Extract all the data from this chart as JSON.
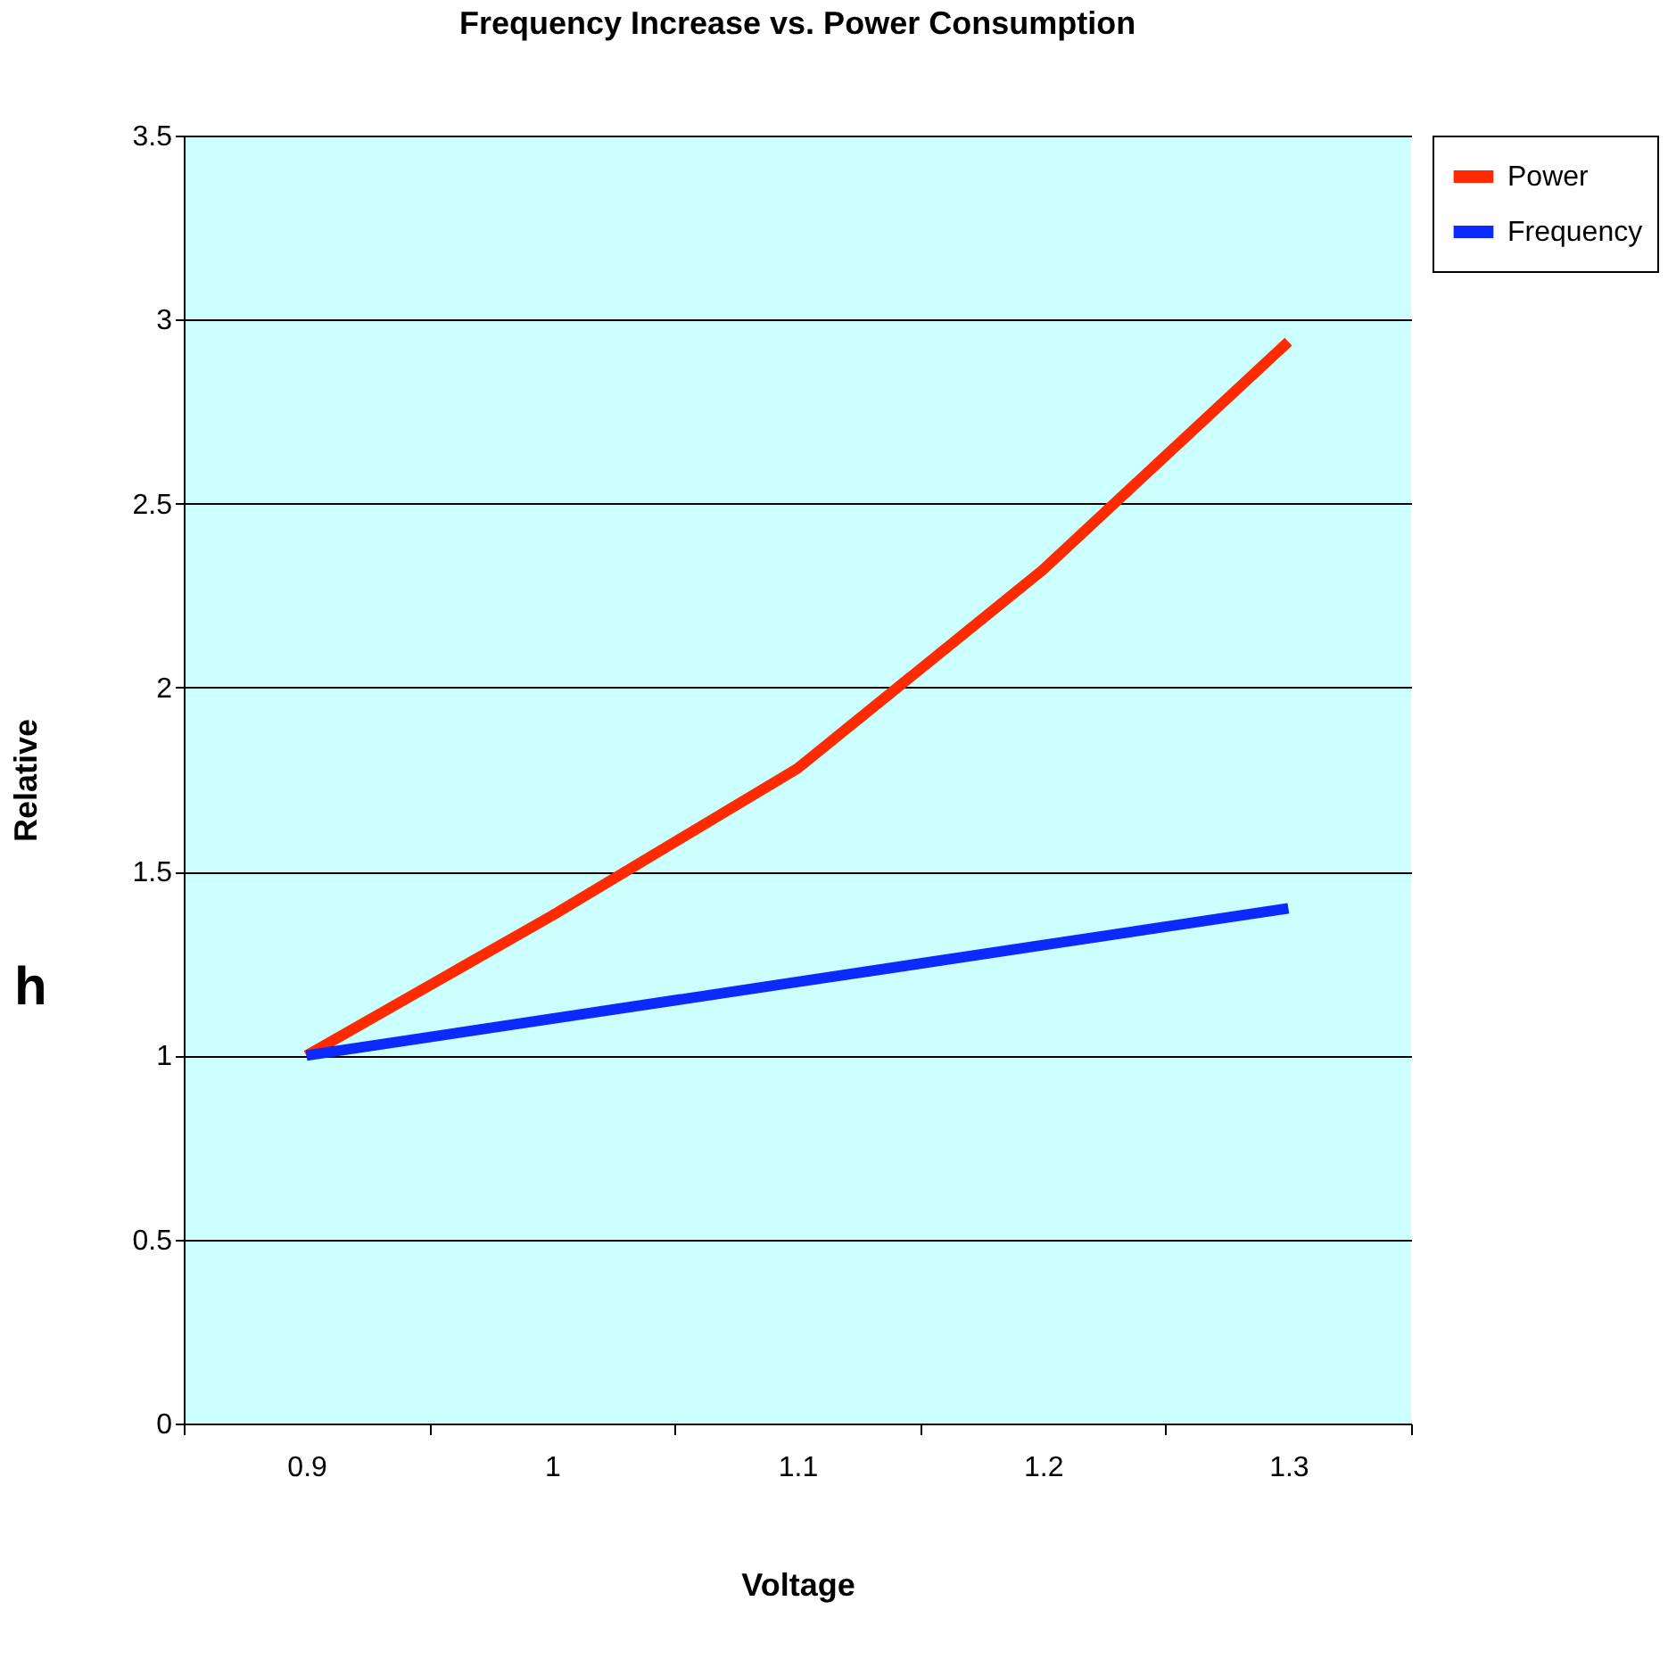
{
  "chart_data": {
    "type": "line",
    "title": "Frequency Increase vs. Power Consumption",
    "xlabel": "Voltage",
    "ylabel": "Relative",
    "categories": [
      "0.9",
      "1",
      "1.1",
      "1.2",
      "1.3"
    ],
    "series": [
      {
        "name": "Power",
        "color": "#ff2a00",
        "values": [
          1,
          1.38,
          1.78,
          2.32,
          2.94
        ]
      },
      {
        "name": "Frequency",
        "color": "#0a2aff",
        "values": [
          1,
          1.1,
          1.2,
          1.3,
          1.4
        ]
      }
    ],
    "ylim": [
      0,
      3.5
    ],
    "yticks": [
      0,
      0.5,
      1,
      1.5,
      2,
      2.5,
      3,
      3.5
    ],
    "grid": "y",
    "legend": "right",
    "marker": "none",
    "line_style": "solid",
    "annotations": [
      "h"
    ]
  }
}
